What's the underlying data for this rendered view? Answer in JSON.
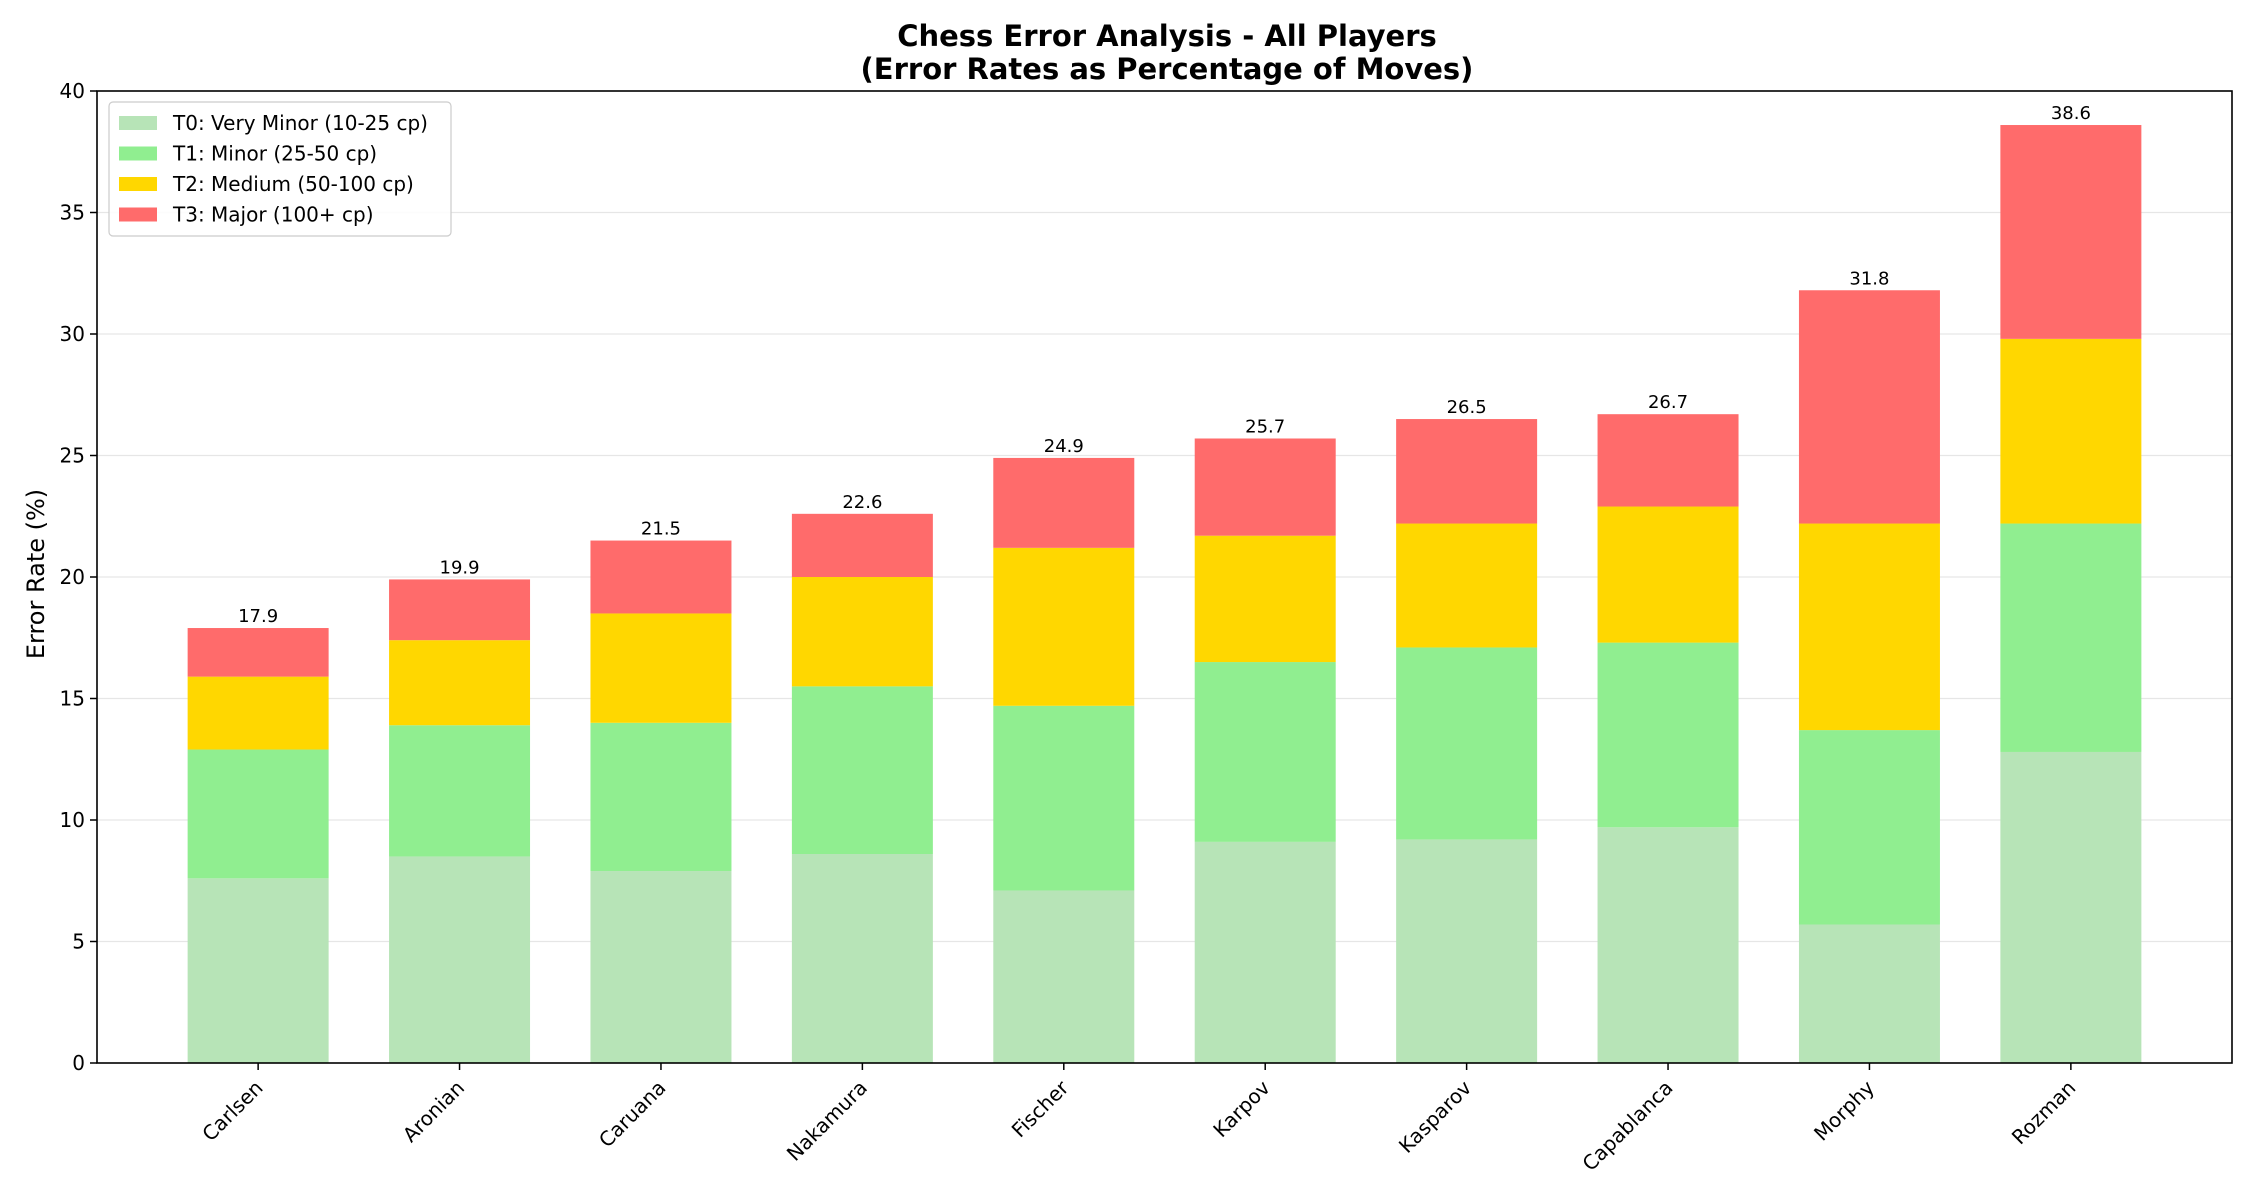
{
  "chart_data": {
    "type": "bar",
    "stacked": true,
    "title": "Chess Error Analysis - All Players",
    "subtitle": "(Error Rates as Percentage of Moves)",
    "xlabel": "",
    "ylabel": "Error Rate (%)",
    "ylim": [
      0,
      40
    ],
    "yticks": [
      0,
      5,
      10,
      15,
      20,
      25,
      30,
      35,
      40
    ],
    "grid": "y",
    "legend_position": "top-left",
    "categories": [
      "Carlsen",
      "Aronian",
      "Caruana",
      "Nakamura",
      "Fischer",
      "Karpov",
      "Kasparov",
      "Capablanca",
      "Morphy",
      "Rozman"
    ],
    "series": [
      {
        "name": "T0: Very Minor (10-25 cp)",
        "color": "#b7e4b7",
        "values": [
          7.6,
          8.5,
          7.9,
          8.6,
          7.1,
          9.1,
          9.2,
          9.7,
          5.7,
          12.8
        ]
      },
      {
        "name": "T1: Minor (25-50 cp)",
        "color": "#90ee90",
        "values": [
          5.3,
          5.4,
          6.1,
          6.9,
          7.6,
          7.4,
          7.9,
          7.6,
          8.0,
          9.4
        ]
      },
      {
        "name": "T2: Medium (50-100 cp)",
        "color": "#ffd700",
        "values": [
          3.0,
          3.5,
          4.5,
          4.5,
          6.5,
          5.2,
          5.1,
          5.6,
          8.5,
          7.6
        ]
      },
      {
        "name": "T3: Major (100+ cp)",
        "color": "#ff6b6b",
        "values": [
          2.0,
          2.5,
          3.0,
          2.6,
          3.7,
          4.0,
          4.3,
          3.8,
          9.6,
          8.8
        ]
      }
    ],
    "totals": [
      "17.9",
      "19.9",
      "21.5",
      "22.6",
      "24.9",
      "25.7",
      "26.5",
      "26.7",
      "31.8",
      "38.6"
    ]
  }
}
